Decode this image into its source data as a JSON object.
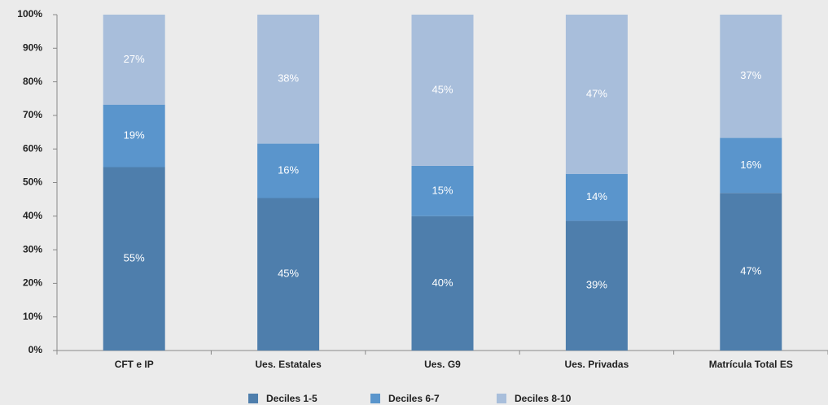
{
  "chart_data": {
    "type": "stacked_bar",
    "categories": [
      "CFT e IP",
      "Ues. Estatales",
      "Ues. G9",
      "Ues. Privadas",
      "Matrícula Total ES"
    ],
    "series": [
      {
        "name": "Deciles 1-5",
        "color": "#4e7eac",
        "values": [
          54.6,
          45.4,
          40,
          38.6,
          46.9
        ],
        "value_labels": [
          "55%",
          "45%",
          "40%",
          "39%",
          "47%"
        ]
      },
      {
        "name": "Deciles 6-7",
        "color": "#5a95cc",
        "values": [
          18.6,
          16.2,
          15,
          14,
          16.4
        ],
        "value_labels": [
          "19%",
          "16%",
          "15%",
          "14%",
          "16%"
        ]
      },
      {
        "name": "Deciles 8-10",
        "color": "#a8bedb",
        "values": [
          26.8,
          38.4,
          45,
          47.4,
          36.7
        ],
        "value_labels": [
          "27%",
          "38%",
          "45%",
          "47%",
          "37%"
        ]
      }
    ],
    "ylim": [
      0,
      100
    ],
    "yticks": [
      {
        "value": 0,
        "label": "0%"
      },
      {
        "value": 10,
        "label": "10%"
      },
      {
        "value": 20,
        "label": "20%"
      },
      {
        "value": 30,
        "label": "30%"
      },
      {
        "value": 40,
        "label": "40%"
      },
      {
        "value": 50,
        "label": "50%"
      },
      {
        "value": 60,
        "label": "60%"
      },
      {
        "value": 70,
        "label": "70%"
      },
      {
        "value": 80,
        "label": "80%"
      },
      {
        "value": 90,
        "label": "90%"
      },
      {
        "value": 100,
        "label": "100%"
      }
    ],
    "legend": "bottom"
  }
}
